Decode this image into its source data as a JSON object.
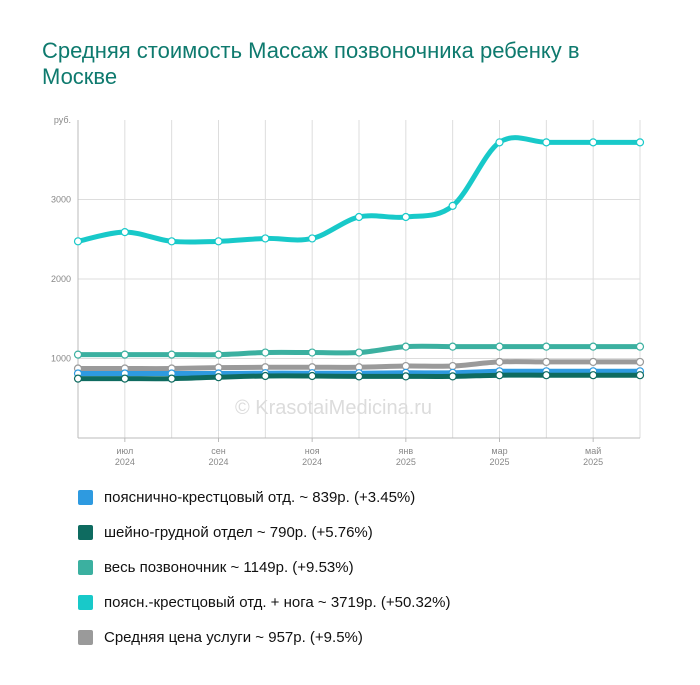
{
  "chart_data": {
    "type": "line",
    "title": "Средняя стоимость Массаж позвоночника ребенку в Москве",
    "ylabel": "руб.",
    "ylim": [
      0,
      4000
    ],
    "yticks": [
      "1000",
      "2000",
      "3000"
    ],
    "ytick_values": [
      1000,
      2000,
      3000
    ],
    "x_tick_labels": [
      {
        "month": "июл",
        "year": "2024"
      },
      {
        "month": "сен",
        "year": "2024"
      },
      {
        "month": "ноя",
        "year": "2024"
      },
      {
        "month": "янв",
        "year": "2025"
      },
      {
        "month": "мар",
        "year": "2025"
      },
      {
        "month": "май",
        "year": "2025"
      }
    ],
    "x": [
      "2024-05",
      "2024-06",
      "2024-07",
      "2024-08",
      "2024-09",
      "2024-10",
      "2024-11",
      "2024-12",
      "2025-01",
      "2025-02",
      "2025-03",
      "2025-04",
      "2025-05"
    ],
    "grid": true,
    "legend_position": "bottom",
    "series": [
      {
        "name": "пояснично-крестцовый отд. ~ 839р. (+3.45%)",
        "color": "#2e9ae0",
        "values": [
          811,
          811,
          811,
          811,
          815,
          815,
          815,
          820,
          820,
          839,
          839,
          839,
          839
        ]
      },
      {
        "name": "шейно-грудной отдел ~ 790р. (+5.76%)",
        "color": "#0e6b60",
        "values": [
          747,
          747,
          747,
          765,
          780,
          780,
          775,
          775,
          775,
          790,
          790,
          790,
          790
        ]
      },
      {
        "name": "весь позвоночник ~ 1149р. (+9.53%)",
        "color": "#3bb0a0",
        "values": [
          1049,
          1049,
          1049,
          1049,
          1075,
          1075,
          1075,
          1149,
          1149,
          1149,
          1149,
          1149,
          1149
        ]
      },
      {
        "name": "поясн.-крестцовый отд. + нога ~ 3719р. (+50.32%)",
        "color": "#18c9c9",
        "values": [
          2474,
          2590,
          2474,
          2474,
          2510,
          2510,
          2780,
          2780,
          2920,
          3719,
          3719,
          3719,
          3719
        ]
      },
      {
        "name": "Средняя цена услуги ~ 957р. (+9.5%)",
        "color": "#9a9a9a",
        "values": [
          874,
          874,
          874,
          885,
          890,
          890,
          890,
          905,
          905,
          957,
          957,
          957,
          957
        ]
      }
    ]
  },
  "watermark": "© KrasotaiMedicina.ru"
}
